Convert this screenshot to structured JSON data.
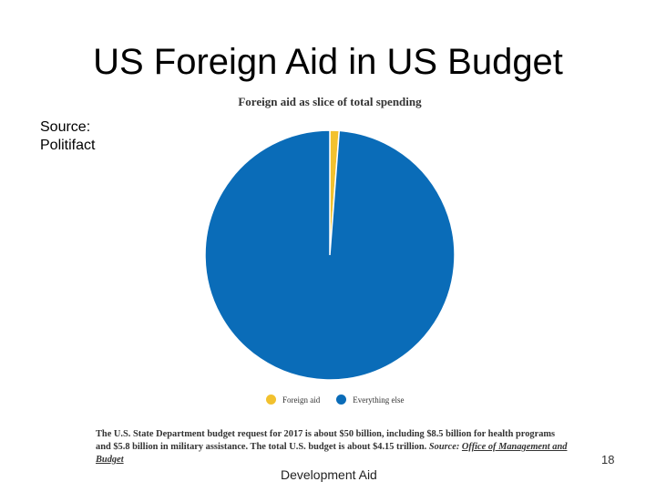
{
  "slide": {
    "title": "US Foreign Aid in US Budget",
    "source_line1": "Source:",
    "source_line2": "Politifact",
    "page_number": "18",
    "footer": "Development Aid"
  },
  "caption": {
    "text": "The U.S. State Department budget request for 2017 is about $50 billion, including $8.5 billion for health programs and $5.8 billion in military assistance. The total U.S. budget is about $4.15 trillion. ",
    "source_label": "Source: ",
    "source_link": "Office of Management and Budget"
  },
  "chart_data": {
    "type": "pie",
    "title": "Foreign aid as slice of total spending",
    "legend_position": "bottom",
    "slices": [
      {
        "label": "Foreign aid",
        "value": 1.2,
        "color": "#f2c12e"
      },
      {
        "label": "Everything else",
        "value": 98.8,
        "color": "#0a6cb8"
      }
    ]
  }
}
